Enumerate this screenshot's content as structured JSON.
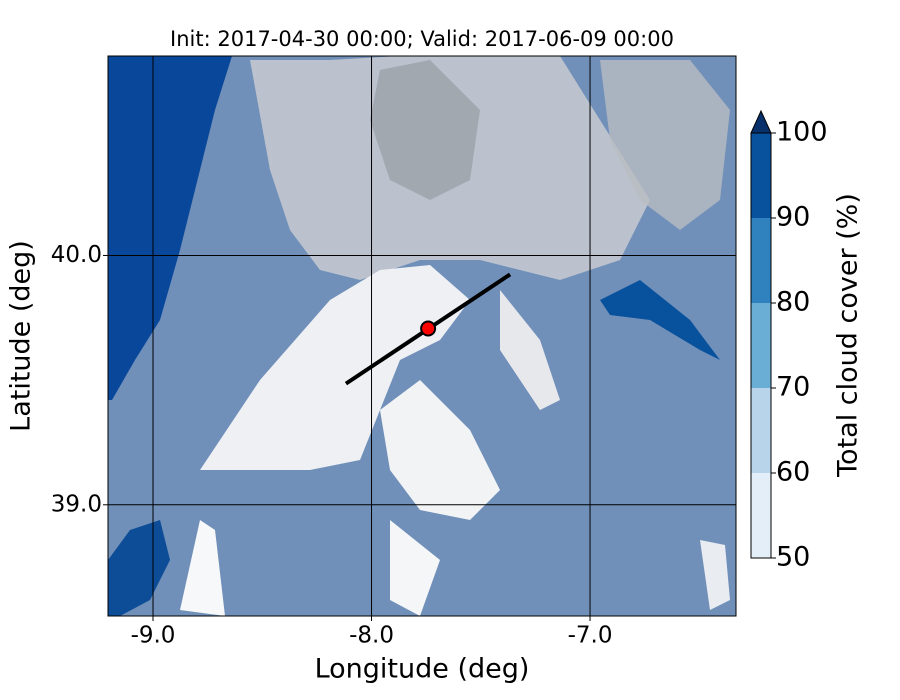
{
  "chart_data": {
    "type": "map",
    "title": "Init: 2017-04-30 00:00; Valid: 2017-06-09 00:00",
    "x_label": "Longitude (deg)",
    "y_label": "Latitude (deg)",
    "xlim": [
      -9.206,
      -6.332
    ],
    "ylim": [
      38.554,
      40.8
    ],
    "xticks": [
      {
        "value": -9,
        "label": "-9.0"
      },
      {
        "value": -8,
        "label": "-8.0"
      },
      {
        "value": -7,
        "label": "-7.0"
      }
    ],
    "yticks": [
      {
        "value": 39,
        "label": "39.0"
      },
      {
        "value": 40,
        "label": "40.0"
      }
    ],
    "grid": true,
    "section": {
      "lon": [
        -8.117,
        -7.366
      ],
      "lat": [
        39.486,
        39.924
      ],
      "color": "#000000"
    },
    "point": {
      "lon": -7.741,
      "lat": 39.707,
      "color": "#ff0000"
    },
    "colorbar": {
      "label": "Total cloud cover (%)",
      "lim": [
        50,
        100
      ],
      "ticks": [
        50,
        60,
        70,
        80,
        90,
        100
      ],
      "colors": [
        "#e3eef8",
        "#b7d4ea",
        "#6aaed6",
        "#3082be",
        "#08519c"
      ],
      "extend_color": "#08306b"
    }
  }
}
